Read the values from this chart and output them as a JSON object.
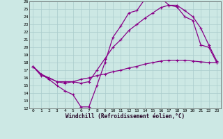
{
  "xlabel": "Windchill (Refroidissement éolien,°C)",
  "bg_color": "#cce8e4",
  "line_color": "#880088",
  "grid_color": "#aacccc",
  "xlim": [
    -0.5,
    23.5
  ],
  "ylim": [
    12,
    26
  ],
  "yticks": [
    12,
    13,
    14,
    15,
    16,
    17,
    18,
    19,
    20,
    21,
    22,
    23,
    24,
    25,
    26
  ],
  "xticks": [
    0,
    1,
    2,
    3,
    4,
    5,
    6,
    7,
    8,
    9,
    10,
    11,
    12,
    13,
    14,
    15,
    16,
    17,
    18,
    19,
    20,
    21,
    22,
    23
  ],
  "line1_x": [
    0,
    1,
    2,
    3,
    4,
    5,
    6,
    7,
    8,
    9,
    10,
    11,
    12,
    13,
    14,
    15,
    16,
    17,
    18,
    19,
    20,
    21,
    22,
    23
  ],
  "line1_y": [
    17.5,
    16.5,
    15.8,
    15.0,
    14.3,
    13.8,
    12.2,
    12.2,
    15.0,
    18.0,
    21.3,
    22.8,
    24.5,
    24.8,
    26.3,
    26.5,
    26.5,
    25.5,
    25.3,
    24.0,
    23.5,
    20.3,
    20.0,
    18.0
  ],
  "line2_x": [
    0,
    1,
    2,
    3,
    4,
    5,
    6,
    7,
    8,
    9,
    10,
    11,
    12,
    13,
    14,
    15,
    16,
    17,
    18,
    19,
    20,
    21,
    22,
    23
  ],
  "line2_y": [
    17.5,
    16.3,
    16.0,
    15.5,
    15.3,
    15.5,
    15.3,
    15.5,
    17.0,
    18.5,
    20.0,
    21.0,
    22.2,
    23.0,
    23.8,
    24.5,
    25.2,
    25.5,
    25.5,
    24.8,
    24.0,
    22.5,
    20.3,
    18.2
  ],
  "line3_x": [
    0,
    1,
    2,
    3,
    4,
    5,
    6,
    7,
    8,
    9,
    10,
    11,
    12,
    13,
    14,
    15,
    16,
    17,
    18,
    19,
    20,
    21,
    22,
    23
  ],
  "line3_y": [
    17.5,
    16.5,
    16.0,
    15.5,
    15.5,
    15.5,
    15.8,
    16.0,
    16.3,
    16.5,
    16.8,
    17.0,
    17.3,
    17.5,
    17.8,
    18.0,
    18.2,
    18.3,
    18.3,
    18.3,
    18.2,
    18.1,
    18.0,
    18.0
  ]
}
